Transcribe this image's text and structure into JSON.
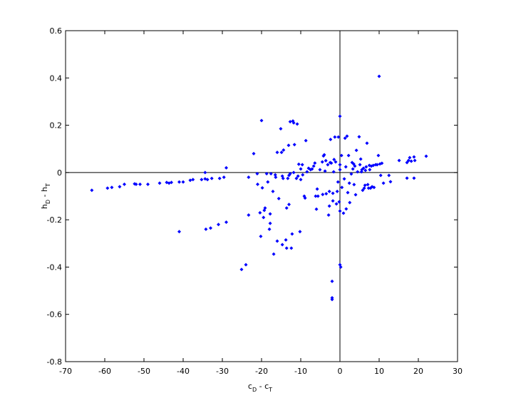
{
  "chart_data": {
    "type": "scatter",
    "color": "#0000ff",
    "zero_lines": true,
    "xlabel": [
      "c",
      "D",
      " - c",
      "T"
    ],
    "ylabel": [
      "h",
      "D",
      " - h",
      "T"
    ],
    "xlim": [
      -70,
      30
    ],
    "ylim": [
      -0.8,
      0.6
    ],
    "xticks": [
      -70,
      -60,
      -50,
      -40,
      -30,
      -20,
      -10,
      0,
      10,
      20,
      30
    ],
    "yticks": [
      -0.8,
      -0.6,
      -0.4,
      -0.2,
      0,
      0.2,
      0.4,
      0.6
    ],
    "x": [
      -63.3,
      -59.3,
      -58.2,
      -56.2,
      -55,
      -52.4,
      -52,
      -51,
      -49,
      -46,
      -44.2,
      -43.6,
      -43,
      -41,
      -40,
      -38.2,
      -37.5,
      -35.3,
      -34.4,
      -34.4,
      -33.8,
      -32.7,
      -30.7,
      -29.6,
      -29,
      -41,
      -34.2,
      -33,
      -31,
      -29,
      -25.1,
      -24,
      -23.3,
      -22,
      -23.3,
      -21.1,
      -21,
      -20.4,
      -20.2,
      -20,
      -19.8,
      -19.5,
      -19.3,
      -19.1,
      -18.7,
      -18.4,
      -18,
      -17.8,
      -17.8,
      -17.6,
      -17.1,
      -16.9,
      -16.5,
      -16.4,
      -16,
      -16,
      -15.6,
      -15.1,
      -14.9,
      -14.7,
      -14.7,
      -14.5,
      -14.4,
      -13.8,
      -13.6,
      -13.6,
      -13.3,
      -13.1,
      -13,
      -13,
      -12.7,
      -12.7,
      -12.4,
      -12.2,
      -12,
      -11.8,
      -11.8,
      -11.6,
      -11.1,
      -10.9,
      -10.7,
      -10.5,
      -10.2,
      -10,
      -10,
      -9.6,
      -9.5,
      -9.1,
      -8.9,
      -8.7,
      -8.4,
      -8,
      -7.5,
      -7.1,
      -6.7,
      -6.4,
      -6.2,
      -6,
      -5.8,
      -5.6,
      -5.1,
      -4.5,
      -4.4,
      -4.2,
      -4,
      -3.8,
      -3.6,
      -3.5,
      -3.1,
      -2.9,
      -2.7,
      -2.7,
      -2.5,
      -2.4,
      -2.2,
      -2,
      -2,
      -2,
      -1.8,
      -1.8,
      -1.6,
      -1.5,
      -1.3,
      -1.1,
      -0.9,
      -0.7,
      -0.5,
      -0.4,
      -0.2,
      0,
      0,
      0,
      0,
      0,
      0.2,
      0.4,
      0.5,
      0.9,
      1.1,
      1.3,
      1.5,
      1.6,
      1.8,
      2,
      2.2,
      2.4,
      2.5,
      2.9,
      3.1,
      3.3,
      3.5,
      3.6,
      3.8,
      4,
      4.2,
      4.5,
      4.9,
      5.1,
      5.3,
      5.5,
      5.6,
      5.8,
      6,
      6.2,
      6.4,
      6.5,
      6.7,
      6.9,
      7.1,
      7.3,
      7.5,
      7.6,
      7.8,
      8,
      8.2,
      8.5,
      8.7,
      9.1,
      9.5,
      9.8,
      10,
      10.2,
      10.4,
      10.7,
      11.1,
      12.5,
      12.9,
      15.1,
      17.1,
      17.1,
      17.5,
      17.8,
      18.2,
      18.9,
      18.9,
      19.1,
      22
    ],
    "y": [
      -0.075,
      -0.066,
      -0.063,
      -0.06,
      -0.05,
      -0.048,
      -0.05,
      -0.05,
      -0.05,
      -0.045,
      -0.042,
      -0.045,
      -0.042,
      -0.04,
      -0.04,
      -0.033,
      -0.03,
      -0.03,
      0,
      -0.027,
      -0.03,
      -0.025,
      -0.025,
      -0.02,
      0.02,
      -0.25,
      -0.24,
      -0.235,
      -0.22,
      -0.21,
      -0.41,
      -0.39,
      -0.18,
      0.08,
      -0.02,
      -0.005,
      -0.05,
      -0.17,
      -0.27,
      0.22,
      -0.065,
      -0.19,
      -0.16,
      -0.15,
      -0.005,
      -0.04,
      -0.24,
      -0.215,
      -0.175,
      -0.005,
      -0.08,
      -0.345,
      -0.01,
      -0.02,
      -0.29,
      0.085,
      -0.11,
      0.185,
      0.085,
      -0.015,
      -0.305,
      -0.025,
      0.095,
      -0.285,
      -0.15,
      -0.32,
      -0.025,
      0.115,
      -0.135,
      -0.012,
      0.215,
      -0.005,
      -0.32,
      -0.26,
      0.218,
      0.21,
      0,
      0.118,
      -0.025,
      0.205,
      -0.015,
      0.035,
      -0.25,
      0.015,
      -0.03,
      0.033,
      -0.01,
      -0.1,
      -0.108,
      0.135,
      0.003,
      0.018,
      0.012,
      0.015,
      0.027,
      0.04,
      -0.1,
      -0.155,
      -0.07,
      -0.1,
      0.012,
      0.045,
      -0.093,
      0.07,
      0.075,
      0.006,
      0.05,
      -0.09,
      0.033,
      -0.18,
      -0.08,
      -0.142,
      0.042,
      0.14,
      0.04,
      -0.46,
      -0.53,
      -0.537,
      -0.088,
      -0.12,
      0.003,
      0.055,
      0.15,
      0.045,
      -0.133,
      -0.08,
      -0.04,
      0.15,
      -0.124,
      0.238,
      0.033,
      0.012,
      -0.163,
      -0.39,
      -0.4,
      0.072,
      -0.063,
      -0.172,
      -0.027,
      0.145,
      0.024,
      -0.154,
      0.154,
      -0.085,
      0.072,
      -0.045,
      -0.127,
      -0.006,
      0.042,
      0.015,
      0.036,
      -0.051,
      0.027,
      -0.094,
      0.094,
      0.003,
      0.151,
      0.033,
      0.057,
      0.003,
      0.012,
      -0.075,
      0.018,
      -0.066,
      -0.054,
      0.009,
      0.024,
      0.124,
      -0.051,
      -0.066,
      0.03,
      0.012,
      -0.066,
      0.027,
      -0.06,
      0.03,
      -0.063,
      0.033,
      0.033,
      0.072,
      0.407,
      0.036,
      -0.012,
      0.039,
      -0.045,
      -0.012,
      -0.039,
      0.051,
      -0.024,
      0.042,
      0.051,
      0.063,
      0.048,
      0.066,
      -0.024,
      0.051,
      0.069
    ]
  }
}
